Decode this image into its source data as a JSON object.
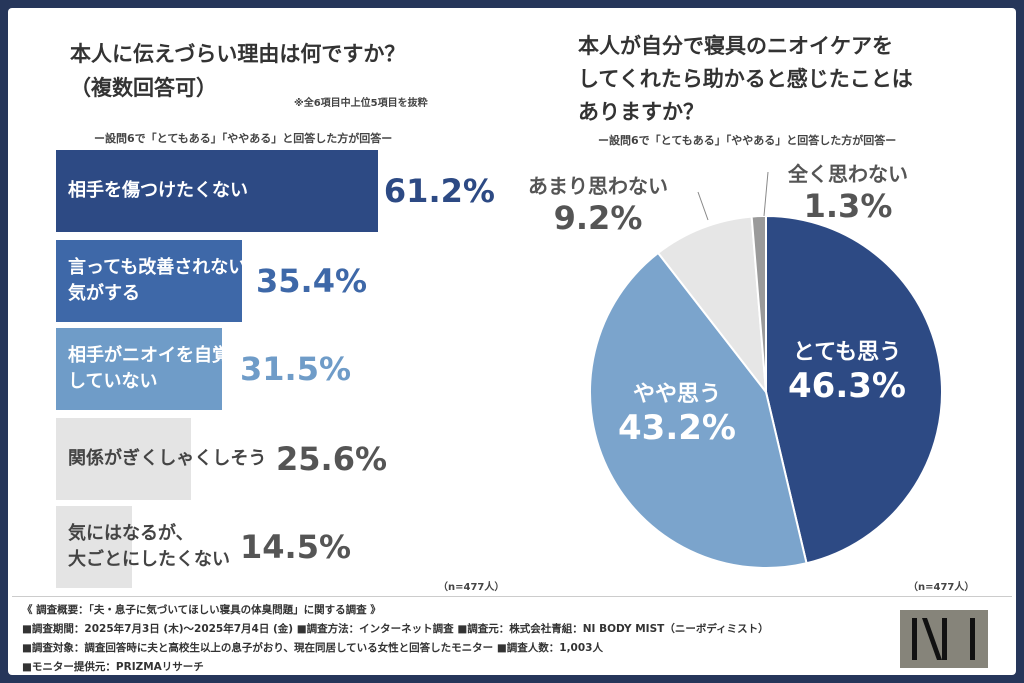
{
  "chart_data": [
    {
      "type": "bar",
      "orientation": "horizontal",
      "title": "本人に伝えづらい理由は何ですか？（複数回答可）",
      "note": "※全6項目中上位5項目を抜粋",
      "subtitle": "ー設問6で「とてもある」「ややある」と回答した方が回答ー",
      "categories": [
        "相手を傷つけたくない",
        "言っても改善されない気がする",
        "相手がニオイを自覚していない",
        "関係がぎくしゃくしそう",
        "気にはなるが、大ごとにしたくない"
      ],
      "label_lines": [
        [
          "相手を傷つけたくない"
        ],
        [
          "言っても改善されない",
          "気がする"
        ],
        [
          "相手がニオイを自覚",
          "していない"
        ],
        [
          "関係がぎくしゃくしそう"
        ],
        [
          "気にはなるが、",
          "大ごとにしたくない"
        ]
      ],
      "values": [
        61.2,
        35.4,
        31.5,
        25.6,
        14.5
      ],
      "value_labels": [
        "61.2%",
        "35.4%",
        "31.5%",
        "25.6%",
        "14.5%"
      ],
      "colors": [
        "#2d4a84",
        "#3e68a8",
        "#6f9cc8",
        "#e4e4e4",
        "#e4e4e4"
      ],
      "sample": "（n=477人）"
    },
    {
      "type": "pie",
      "title": "本人が自分で寝具のニオイケアをしてくれたら助かると感じたことはありますか？",
      "title_lines": [
        "本人が自分で寝具のニオイケアを",
        "してくれたら助かると感じたことは",
        "ありますか？"
      ],
      "subtitle": "ー設問6で「とてもある」「ややある」と回答した方が回答ー",
      "slices": [
        {
          "label": "とても思う",
          "value": 46.3,
          "value_label": "46.3%",
          "color": "#2d4a84"
        },
        {
          "label": "やや思う",
          "value": 43.2,
          "value_label": "43.2%",
          "color": "#7ba4cc"
        },
        {
          "label": "あまり思わない",
          "value": 9.2,
          "value_label": "9.2%",
          "color": "#e6e6e6"
        },
        {
          "label": "全く思わない",
          "value": 1.3,
          "value_label": "1.3%",
          "color": "#9a9a9a"
        }
      ],
      "sample": "（n=477人）"
    }
  ],
  "footer": {
    "lines": [
      "《 調査概要：「夫・息子に気づいてほしい寝具の体臭問題」に関する調査 》",
      "■調査期間：2025年7月3日 (木)～2025年7月4日 (金) ■調査方法：インターネット調査 ■調査元：株式会社青組：NI BODY MIST（ニーボディミスト）",
      "■調査対象：調査回答時に夫と高校生以上の息子がおり、現在同居している女性と回答したモニター ■調査人数：1,003人",
      "■モニター提供元：PRIZMAリサーチ"
    ],
    "logo": "NI"
  }
}
